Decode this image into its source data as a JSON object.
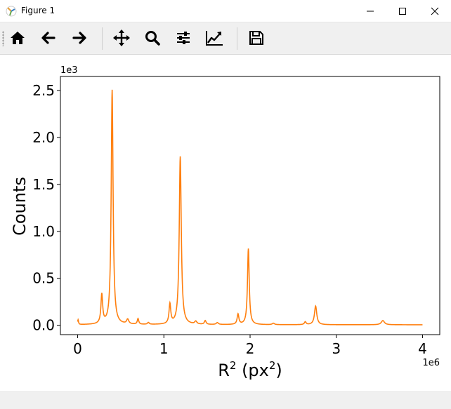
{
  "window": {
    "title": "Figure 1"
  },
  "toolbar": {
    "buttons": [
      {
        "name": "home-icon"
      },
      {
        "name": "back-arrow-icon"
      },
      {
        "name": "forward-arrow-icon"
      },
      {
        "name": "pan-icon"
      },
      {
        "name": "zoom-icon"
      },
      {
        "name": "configure-subplots-icon"
      },
      {
        "name": "edit-axis-icon"
      },
      {
        "name": "save-icon"
      }
    ]
  },
  "colors": {
    "line": "#ff7f0e",
    "toolbar_bg": "#f0f0f0"
  },
  "chart_data": {
    "type": "line",
    "title": "",
    "xlabel": "R",
    "xlabel_sup": "2",
    "xlabel_mid": " (px",
    "xlabel_sup2": "2",
    "xlabel_end": ")",
    "ylabel": "Counts",
    "x_offset_label": "1e6",
    "y_offset_label": "1e3",
    "xlim": [
      -0.2,
      4.2
    ],
    "ylim": [
      -0.1,
      2.65
    ],
    "xticks": [
      0,
      1,
      2,
      3,
      4
    ],
    "xtick_labels": [
      "0",
      "1",
      "2",
      "3",
      "4"
    ],
    "yticks": [
      0.0,
      0.5,
      1.0,
      1.5,
      2.0,
      2.5
    ],
    "ytick_labels": [
      "0.0",
      "0.5",
      "1.0",
      "1.5",
      "2.0",
      "2.5"
    ],
    "x_range": [
      0,
      4
    ],
    "baseline": 0.005,
    "series": [
      {
        "color": "#ff7f0e",
        "peaks": [
          {
            "x": 0.005,
            "h": 0.05,
            "w": 0.006
          },
          {
            "x": 0.28,
            "h": 0.31,
            "w": 0.012
          },
          {
            "x": 0.4,
            "h": 2.5,
            "w": 0.013
          },
          {
            "x": 0.58,
            "h": 0.05,
            "w": 0.015
          },
          {
            "x": 0.7,
            "h": 0.06,
            "w": 0.01
          },
          {
            "x": 0.82,
            "h": 0.02,
            "w": 0.012
          },
          {
            "x": 1.07,
            "h": 0.21,
            "w": 0.012
          },
          {
            "x": 1.19,
            "h": 1.79,
            "w": 0.014
          },
          {
            "x": 1.37,
            "h": 0.03,
            "w": 0.015
          },
          {
            "x": 1.48,
            "h": 0.04,
            "w": 0.012
          },
          {
            "x": 1.62,
            "h": 0.02,
            "w": 0.015
          },
          {
            "x": 1.86,
            "h": 0.11,
            "w": 0.012
          },
          {
            "x": 1.98,
            "h": 0.81,
            "w": 0.012
          },
          {
            "x": 2.27,
            "h": 0.015,
            "w": 0.015
          },
          {
            "x": 2.64,
            "h": 0.03,
            "w": 0.012
          },
          {
            "x": 2.76,
            "h": 0.2,
            "w": 0.016
          },
          {
            "x": 3.54,
            "h": 0.045,
            "w": 0.022
          }
        ]
      }
    ]
  }
}
